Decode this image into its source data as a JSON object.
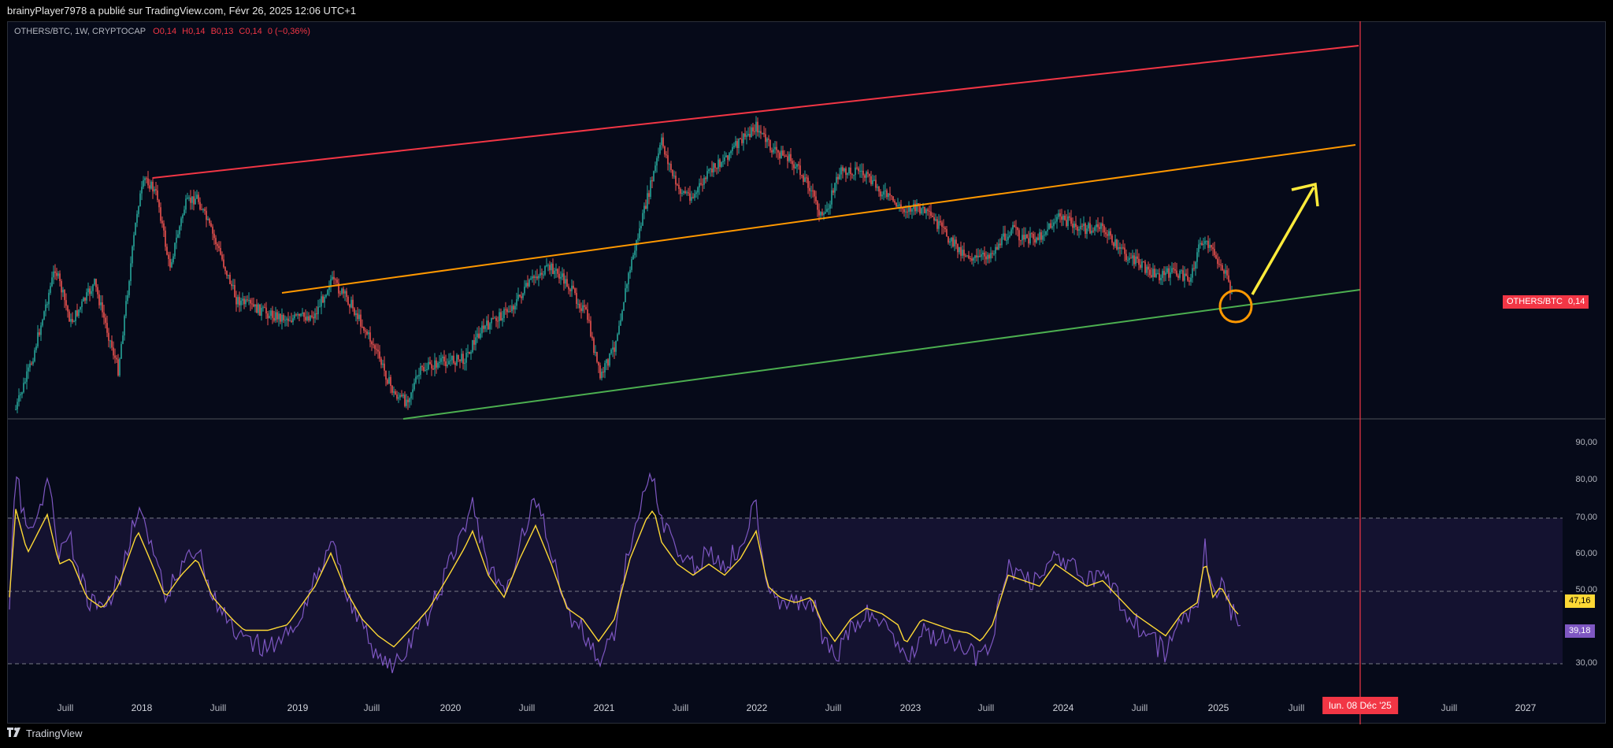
{
  "header": {
    "attribution": "brainyPlayer7978 a publié sur TradingView.com, Févr 26, 2025 12:06 UTC+1"
  },
  "legend": {
    "symbol": "OTHERS/BTC, 1W, CRYPTOCAP",
    "open": "O0,14",
    "high": "H0,14",
    "low": "B0,13",
    "close": "C0,14",
    "change": "0 (−0,36%)"
  },
  "price_scale": {
    "symbol_tag": "OTHERS/BTC",
    "symbol_value": "0,14"
  },
  "rsi_scale": {
    "ticks": [
      "90,00",
      "80,00",
      "70,00",
      "60,00",
      "50,00",
      "30,00"
    ],
    "ma_value": "47,16",
    "rsi_value": "39,18"
  },
  "time_axis": {
    "labels": [
      "Juill",
      "2018",
      "Juill",
      "2019",
      "Juill",
      "2020",
      "Juill",
      "2021",
      "Juill",
      "2022",
      "Juill",
      "2023",
      "Juill",
      "2024",
      "Juill",
      "2025",
      "Juill",
      "Juill",
      "2027"
    ],
    "crosshair_label": "lun. 08 Déc '25"
  },
  "footer": {
    "brand": "TradingView",
    "logo_icon": "tradingview-logo-icon"
  },
  "colors": {
    "background": "#060a19",
    "up": "#26a69a",
    "down": "#ef5350",
    "resistance": "#f23645",
    "midline": "#ff9800",
    "support": "#4caf50",
    "arrow": "#ffeb3b",
    "rsi": "#7e57c2",
    "rsi_ma": "#fdd835",
    "crosshair": "#f23645"
  }
}
